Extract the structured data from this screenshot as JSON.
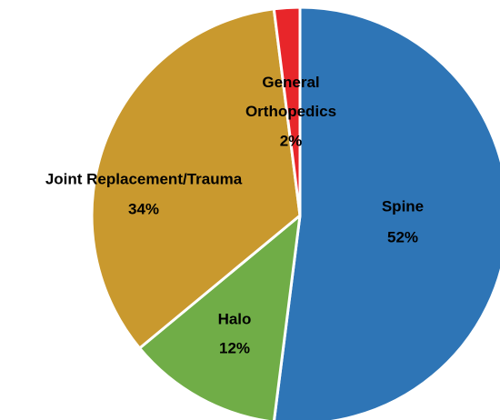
{
  "chart_data": {
    "type": "pie",
    "categories": [
      "Spine",
      "Halo",
      "Joint Replacement/Trauma",
      "General Orthopedics"
    ],
    "values": [
      52,
      12,
      34,
      2
    ],
    "value_labels": [
      "52%",
      "12%",
      "34%",
      "2%"
    ],
    "colors": [
      "#2e75b6",
      "#70ad47",
      "#c9992e",
      "#e8262a"
    ]
  }
}
